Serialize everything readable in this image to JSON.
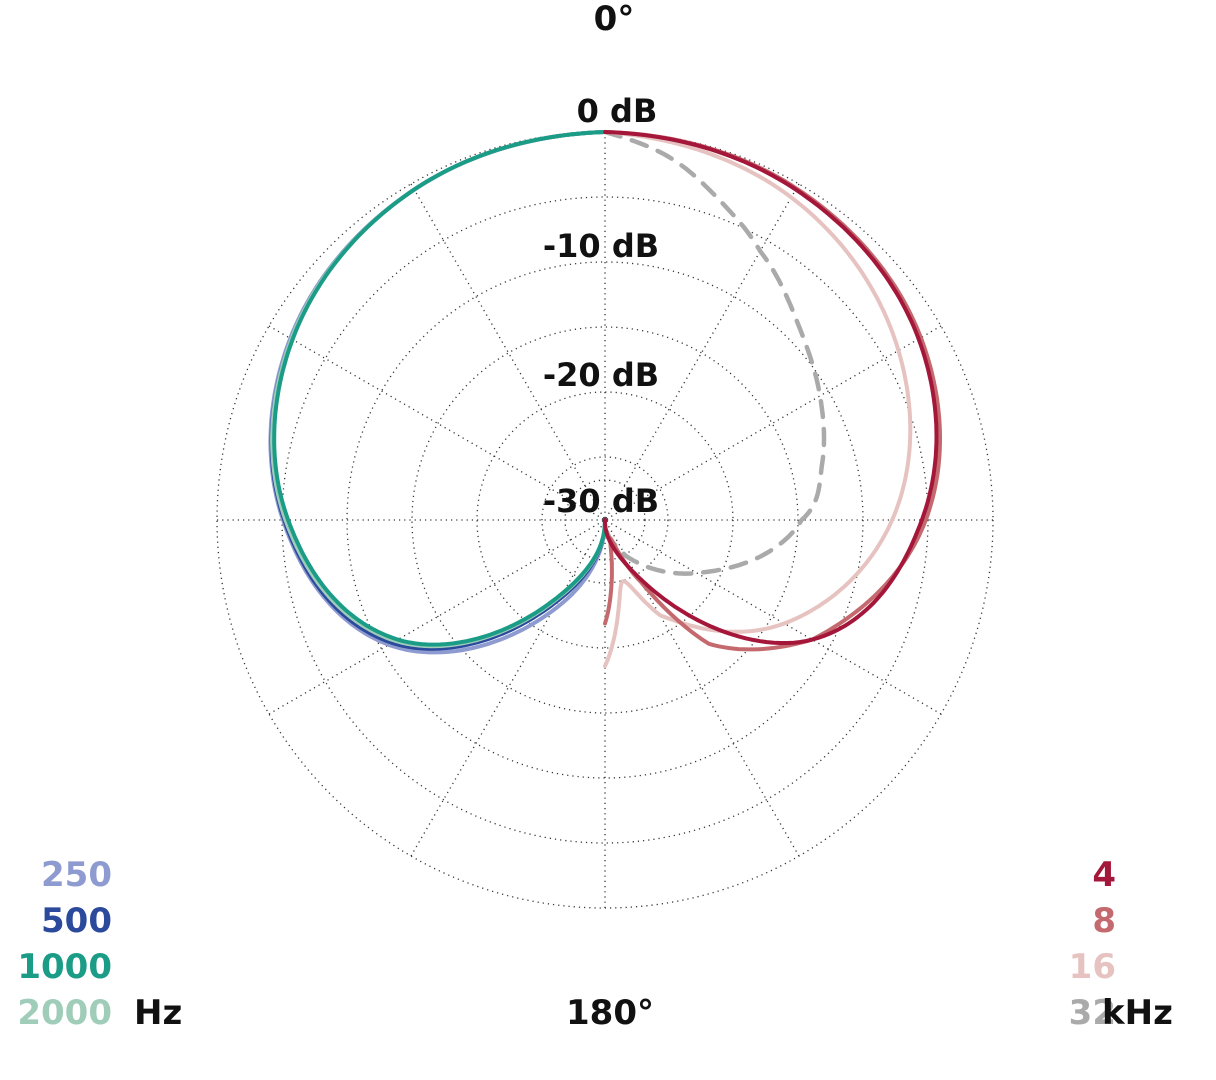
{
  "chart_data": {
    "type": "polar",
    "angle_labels": {
      "top": "0°",
      "bottom": "180°"
    },
    "ring_labels": [
      "0 dB",
      "-10 dB",
      "-20 dB",
      "-30 dB"
    ],
    "r_range_db": [
      -30,
      0
    ],
    "grid": true,
    "angle_grid_step_deg": 30,
    "legend_left": {
      "unit": "Hz",
      "entries": [
        {
          "name": "250",
          "color": "#8e9bd0"
        },
        {
          "name": "500",
          "color": "#2c4a9c"
        },
        {
          "name": "1000",
          "color": "#1a9c86"
        },
        {
          "name": "2000",
          "color": "#9fcdb9"
        }
      ]
    },
    "legend_right": {
      "unit": "kHz",
      "entries": [
        {
          "name": "4",
          "color": "#a5173a"
        },
        {
          "name": "8",
          "color": "#c46a6e"
        },
        {
          "name": "16",
          "color": "#e6c3c1"
        },
        {
          "name": "32",
          "color": "#aaaaaa"
        }
      ]
    },
    "series": [
      {
        "name": "250",
        "side": "left",
        "color": "#8e9bd0",
        "dash": false,
        "theta": [
          0,
          30,
          60,
          90,
          120,
          150,
          180
        ],
        "db": [
          0,
          -0.5,
          -1.9,
          -5.1,
          -10.7,
          -21.9,
          -30
        ]
      },
      {
        "name": "500",
        "side": "left",
        "color": "#2c4a9c",
        "dash": false,
        "theta": [
          0,
          30,
          60,
          90,
          120,
          150,
          180
        ],
        "db": [
          0,
          -0.5,
          -2.0,
          -5.2,
          -11.0,
          -22.9,
          -30
        ]
      },
      {
        "name": "1000",
        "side": "left",
        "color": "#1a9c86",
        "dash": false,
        "theta": [
          0,
          30,
          60,
          90,
          120,
          150,
          180
        ],
        "db": [
          0,
          -0.5,
          -2.1,
          -5.5,
          -11.5,
          -23.5,
          -30
        ]
      },
      {
        "name": "2000",
        "side": "left",
        "color": "#9fcdb9",
        "dash": false,
        "theta": [
          0,
          30,
          60,
          90,
          120,
          150,
          180
        ],
        "db": [
          0,
          -0.5,
          -2.0,
          -5.3,
          -11.3,
          -23.3,
          -30
        ]
      },
      {
        "name": "4",
        "side": "right",
        "color": "#a5173a",
        "dash": false,
        "theta": [
          0,
          30,
          60,
          90,
          120,
          150,
          180
        ],
        "db": [
          0,
          -0.5,
          -2.0,
          -5.5,
          -11.5,
          -25.0,
          -30
        ]
      },
      {
        "name": "8",
        "side": "right",
        "color": "#c46a6e",
        "dash": false,
        "theta": [
          0,
          30,
          60,
          90,
          120,
          140,
          150,
          165,
          180
        ],
        "db": [
          0,
          -0.4,
          -1.8,
          -5.2,
          -11.5,
          -17.5,
          -24.5,
          -28.5,
          -22.0
        ]
      },
      {
        "name": "16",
        "side": "right",
        "color": "#e6c3c1",
        "dash": false,
        "theta": [
          0,
          30,
          60,
          90,
          120,
          150,
          165,
          180
        ],
        "db": [
          0,
          -1.2,
          -3.8,
          -7.8,
          -14.0,
          -21.5,
          -25.0,
          -18.7
        ]
      },
      {
        "name": "32",
        "side": "right",
        "color": "#aaaaaa",
        "dash": true,
        "theta": [
          0,
          10,
          20,
          30,
          45,
          60,
          75,
          90,
          120,
          150,
          165,
          180
        ],
        "db": [
          0,
          -1.5,
          -3.8,
          -6.0,
          -8.8,
          -10.8,
          -12.6,
          -14.8,
          -21.8,
          -26.8,
          -28.5,
          -30
        ]
      }
    ]
  }
}
